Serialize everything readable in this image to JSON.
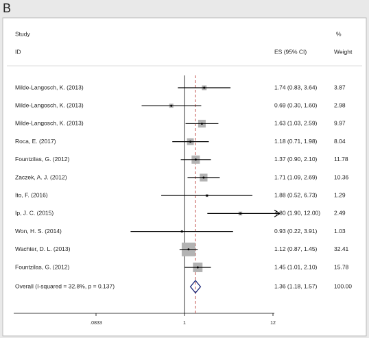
{
  "chart_data": {
    "type": "forest",
    "title": "B",
    "headers": {
      "study": "Study",
      "id": "ID",
      "es": "ES (95% CI)",
      "pct": "%",
      "weight": "Weight"
    },
    "xscale": "log",
    "xlim": [
      0.0833,
      12
    ],
    "xticks": [
      {
        "value": 0.0833,
        "label": ".0833"
      },
      1,
      12
    ],
    "null_value": 1,
    "box_color": "#b3b3b3",
    "ref_color": "#c0504d",
    "diamond_color": "#1f2a7a",
    "studies": [
      {
        "name": "Milde-Langosch, K. (2013)",
        "es": 1.74,
        "lo": 0.83,
        "hi": 3.64,
        "label": "1.74 (0.83, 3.64)",
        "weight": 3.87
      },
      {
        "name": "Milde-Langosch, K. (2013)",
        "es": 0.69,
        "lo": 0.3,
        "hi": 1.6,
        "label": "0.69 (0.30, 1.60)",
        "weight": 2.98
      },
      {
        "name": "Milde-Langosch, K. (2013)",
        "es": 1.63,
        "lo": 1.03,
        "hi": 2.59,
        "label": "1.63 (1.03, 2.59)",
        "weight": 9.97
      },
      {
        "name": "Roca, E. (2017)",
        "es": 1.18,
        "lo": 0.71,
        "hi": 1.98,
        "label": "1.18 (0.71, 1.98)",
        "weight": 8.04
      },
      {
        "name": "Fountzilas, G. (2012)",
        "es": 1.37,
        "lo": 0.9,
        "hi": 2.1,
        "label": "1.37 (0.90, 2.10)",
        "weight": 11.78
      },
      {
        "name": "Zaczek, A. J. (2012)",
        "es": 1.71,
        "lo": 1.09,
        "hi": 2.69,
        "label": "1.71 (1.09, 2.69)",
        "weight": 10.36
      },
      {
        "name": "Ito, F. (2016)",
        "es": 1.88,
        "lo": 0.52,
        "hi": 6.73,
        "label": "1.88 (0.52, 6.73)",
        "weight": 1.29
      },
      {
        "name": "Ip, J. C. (2015)",
        "es": 4.8,
        "lo": 1.9,
        "hi": 12.0,
        "label": "4.80 (1.90, 12.00)",
        "weight": 2.49
      },
      {
        "name": "Won, H. S. (2014)",
        "es": 0.93,
        "lo": 0.22,
        "hi": 3.91,
        "label": "0.93 (0.22, 3.91)",
        "weight": 1.03
      },
      {
        "name": "Wachter, D. L. (2013)",
        "es": 1.12,
        "lo": 0.87,
        "hi": 1.45,
        "label": "1.12 (0.87, 1.45)",
        "weight": 32.41
      },
      {
        "name": "Fountzilas, G. (2012)",
        "es": 1.45,
        "lo": 1.01,
        "hi": 2.1,
        "label": "1.45 (1.01, 2.10)",
        "weight": 15.78
      }
    ],
    "overall": {
      "name": "Overall  (I-squared = 32.8%, p = 0.137)",
      "es": 1.36,
      "lo": 1.18,
      "hi": 1.57,
      "label": "1.36 (1.18, 1.57)",
      "weight": 100,
      "weight_label": "100.00"
    }
  }
}
